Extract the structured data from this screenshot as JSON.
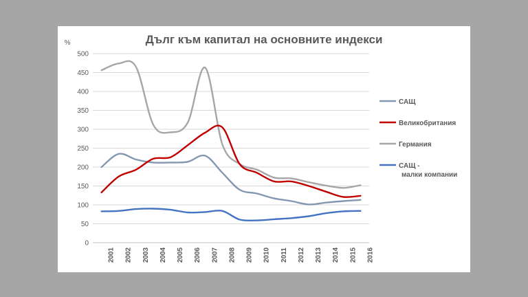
{
  "chart_data": {
    "type": "line",
    "title": "Дълг към капитал на основните индекси",
    "ylabel": "%",
    "xlabel": "",
    "ylim": [
      0,
      500
    ],
    "yticks": [
      0,
      50,
      100,
      150,
      200,
      250,
      300,
      350,
      400,
      450,
      500
    ],
    "categories": [
      "2001",
      "2002",
      "2003",
      "2004",
      "2005",
      "2006",
      "2007",
      "2008",
      "2009",
      "2010",
      "2011",
      "2012",
      "2013",
      "2014",
      "2015",
      "2016"
    ],
    "series": [
      {
        "name": "САЩ",
        "color": "#8497b0",
        "values": [
          200,
          235,
          220,
          212,
          212,
          214,
          230,
          185,
          140,
          130,
          117,
          110,
          101,
          106,
          110,
          113
        ]
      },
      {
        "name": "Великобритания",
        "color": "#c00000",
        "values": [
          133,
          175,
          193,
          222,
          226,
          258,
          291,
          305,
          208,
          185,
          162,
          162,
          150,
          135,
          121,
          124
        ]
      },
      {
        "name": "Германия",
        "color": "#a6a6a6",
        "values": [
          456,
          474,
          465,
          312,
          292,
          318,
          463,
          260,
          208,
          193,
          172,
          170,
          160,
          151,
          145,
          152
        ]
      },
      {
        "name": "САЩ - малки компании",
        "color": "#4472c4",
        "values": [
          83,
          84,
          89,
          90,
          87,
          80,
          81,
          84,
          61,
          59,
          62,
          65,
          70,
          78,
          83,
          84
        ]
      }
    ]
  }
}
